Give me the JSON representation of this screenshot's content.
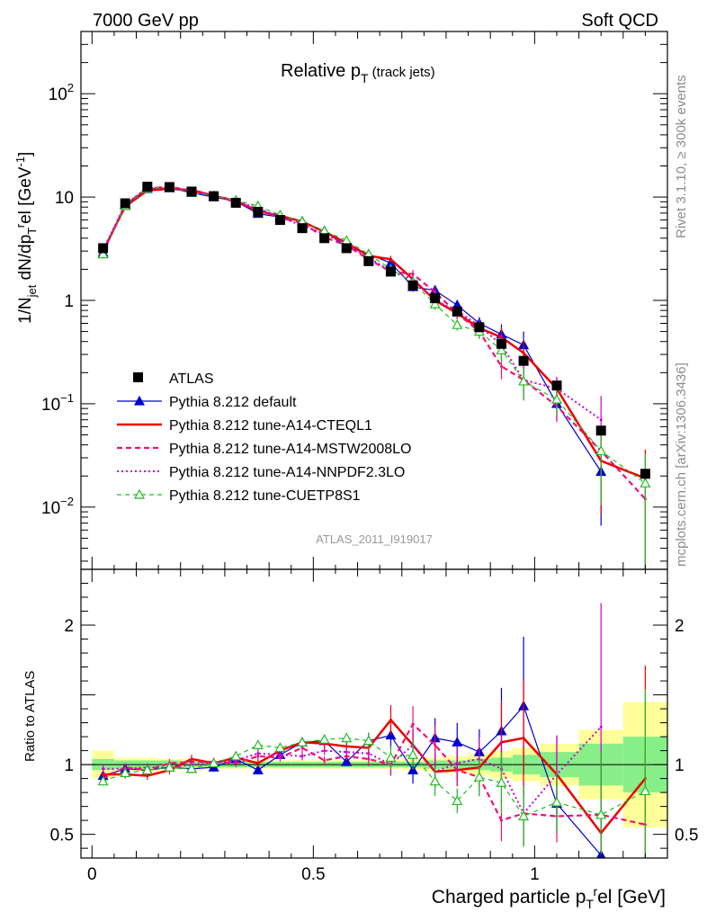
{
  "header": {
    "left": "7000 GeV pp",
    "right": "Soft QCD"
  },
  "side_labels": {
    "rivet": "Rivet 3.1.10, ≥ 300k events",
    "mcplots": "mcplots.cern.ch [arXiv:1306.3436]"
  },
  "analysis_id": "ATLAS_2011_I919017",
  "chart_data": [
    {
      "type": "scatter",
      "title": "Relative p",
      "title_sub": "T",
      "title_suffix": " (track jets)",
      "ylabel": "1/N_jet dN/dp_T^rel [GeV^-1]",
      "yscale": "log",
      "ylim": [
        0.0025,
        400
      ],
      "xlim": [
        -0.025,
        1.3
      ],
      "y_ticks": [
        {
          "v": 0.01,
          "base": "10",
          "exp": "−2"
        },
        {
          "v": 0.1,
          "base": "10",
          "exp": "−1"
        },
        {
          "v": 1,
          "base": "1",
          "exp": ""
        },
        {
          "v": 10,
          "base": "10",
          "exp": ""
        },
        {
          "v": 100,
          "base": "10",
          "exp": "2"
        }
      ],
      "x": [
        0.025,
        0.075,
        0.125,
        0.175,
        0.225,
        0.275,
        0.325,
        0.375,
        0.425,
        0.475,
        0.525,
        0.575,
        0.625,
        0.675,
        0.725,
        0.775,
        0.825,
        0.875,
        0.925,
        0.975,
        1.05,
        1.15,
        1.25
      ],
      "series": [
        {
          "name": "ATLAS",
          "color": "#000000",
          "values": [
            3.2,
            8.7,
            12.6,
            12.5,
            11.3,
            10.2,
            8.8,
            7.2,
            6.0,
            5.0,
            4.0,
            3.2,
            2.4,
            1.9,
            1.4,
            1.05,
            0.78,
            0.55,
            0.38,
            0.26,
            0.15,
            0.055,
            0.021
          ]
        },
        {
          "name": "Pythia 8.212 default",
          "color": "#0000cc",
          "values": [
            2.9,
            8.4,
            12.0,
            12.2,
            11.0,
            10.0,
            9.1,
            6.9,
            6.4,
            5.8,
            4.7,
            3.3,
            2.8,
            2.3,
            1.35,
            1.25,
            0.9,
            0.6,
            0.47,
            0.37,
            0.1,
            0.022,
            null
          ]
        },
        {
          "name": "Pythia 8.212 tune-A14-CTEQL1",
          "color": "#ee0000",
          "values": [
            3.0,
            8.1,
            11.6,
            12.0,
            11.7,
            10.3,
            9.2,
            7.3,
            6.6,
            5.8,
            4.6,
            3.6,
            2.7,
            2.5,
            1.6,
            1.0,
            0.75,
            0.54,
            0.44,
            0.31,
            0.14,
            0.028,
            0.019
          ]
        },
        {
          "name": "Pythia 8.212 tune-A14-MSTW2008LO",
          "color": "#ee1177",
          "values": [
            2.9,
            8.5,
            12.1,
            12.6,
            11.5,
            10.4,
            8.9,
            7.6,
            6.3,
            5.6,
            4.1,
            3.4,
            2.5,
            1.9,
            1.8,
            1.2,
            0.75,
            0.5,
            0.23,
            0.17,
            0.095,
            0.035,
            0.012
          ]
        },
        {
          "name": "Pythia 8.212 tune-A14-NNPDF2.3LO",
          "color": "#cc00cc",
          "values": [
            3.1,
            8.4,
            12.4,
            12.2,
            11.3,
            10.3,
            9.1,
            7.8,
            6.4,
            5.3,
            4.4,
            3.5,
            2.6,
            1.9,
            1.6,
            1.0,
            0.79,
            0.57,
            0.37,
            0.17,
            0.14,
            0.07,
            null
          ]
        },
        {
          "name": "Pythia 8.212 tune-CUETP8S1",
          "color": "#22bb22",
          "values": [
            2.8,
            8.2,
            12.1,
            12.3,
            11.0,
            10.3,
            9.3,
            8.2,
            6.7,
            5.8,
            4.7,
            3.8,
            2.8,
            2.0,
            1.5,
            0.92,
            0.58,
            0.5,
            0.33,
            0.165,
            0.11,
            0.035,
            0.017
          ]
        }
      ]
    },
    {
      "type": "scatter",
      "xlabel": "Charged particle p_T^rel [GeV]",
      "ylabel": "Ratio to ATLAS",
      "ylim": [
        0.33,
        2.4
      ],
      "xlim": [
        -0.025,
        1.3
      ],
      "x_ticks": [
        {
          "v": 0,
          "label": "0"
        },
        {
          "v": 0.5,
          "label": "0.5"
        },
        {
          "v": 1,
          "label": "1"
        }
      ],
      "y_ticks": [
        {
          "v": 0.5,
          "label": "0.5"
        },
        {
          "v": 1,
          "label": "1"
        },
        {
          "v": 2,
          "label": "2"
        }
      ],
      "x": [
        0.025,
        0.075,
        0.125,
        0.175,
        0.225,
        0.275,
        0.325,
        0.375,
        0.425,
        0.475,
        0.525,
        0.575,
        0.625,
        0.675,
        0.725,
        0.775,
        0.825,
        0.875,
        0.925,
        0.975,
        1.05,
        1.15,
        1.25
      ],
      "band_stat": [
        0.04,
        0.03,
        0.03,
        0.03,
        0.02,
        0.02,
        0.02,
        0.02,
        0.02,
        0.02,
        0.02,
        0.02,
        0.02,
        0.02,
        0.02,
        0.03,
        0.03,
        0.04,
        0.05,
        0.07,
        0.09,
        0.15,
        0.2
      ],
      "band_sys": [
        0.1,
        0.05,
        0.05,
        0.04,
        0.04,
        0.03,
        0.03,
        0.03,
        0.03,
        0.03,
        0.03,
        0.03,
        0.03,
        0.03,
        0.04,
        0.05,
        0.06,
        0.08,
        0.1,
        0.12,
        0.15,
        0.25,
        0.45
      ],
      "series": [
        {
          "name": "Pythia 8.212 default",
          "color": "#0000cc",
          "values": [
            0.92,
            0.97,
            0.96,
            0.98,
            0.97,
            0.98,
            1.04,
            0.96,
            1.07,
            1.16,
            1.17,
            1.02,
            1.17,
            1.21,
            0.96,
            1.19,
            1.16,
            1.09,
            1.24,
            1.42,
            0.72,
            0.35,
            null
          ]
        },
        {
          "name": "Pythia 8.212 tune-A14-CTEQL1",
          "color": "#ee0000",
          "values": [
            0.93,
            0.93,
            0.92,
            0.96,
            1.04,
            1.01,
            1.05,
            1.01,
            1.1,
            1.16,
            1.15,
            1.13,
            1.12,
            1.32,
            1.14,
            0.95,
            0.96,
            0.98,
            1.16,
            1.19,
            0.93,
            0.51,
            0.9
          ]
        },
        {
          "name": "Pythia 8.212 tune-A14-MSTW2008LO",
          "color": "#ee1177",
          "values": [
            0.9,
            0.98,
            0.96,
            1.01,
            1.02,
            1.02,
            1.01,
            1.06,
            1.05,
            1.12,
            1.03,
            1.06,
            1.04,
            1.0,
            1.29,
            1.14,
            0.96,
            0.91,
            0.6,
            0.65,
            0.63,
            0.64,
            0.57
          ]
        },
        {
          "name": "Pythia 8.212 tune-A14-NNPDF2.3LO",
          "color": "#cc00cc",
          "values": [
            0.97,
            0.97,
            0.98,
            0.98,
            1.0,
            1.01,
            1.03,
            1.08,
            1.07,
            1.06,
            1.1,
            1.09,
            1.08,
            1.0,
            1.14,
            0.95,
            1.01,
            1.04,
            0.97,
            0.65,
            0.93,
            1.27,
            null
          ]
        },
        {
          "name": "Pythia 8.212 tune-CUETP8S1",
          "color": "#22bb22",
          "values": [
            0.88,
            0.94,
            0.96,
            0.98,
            0.97,
            1.01,
            1.06,
            1.14,
            1.12,
            1.16,
            1.18,
            1.19,
            1.17,
            1.05,
            1.07,
            0.88,
            0.74,
            0.91,
            0.87,
            0.63,
            0.73,
            0.64,
            0.81
          ]
        }
      ]
    }
  ]
}
